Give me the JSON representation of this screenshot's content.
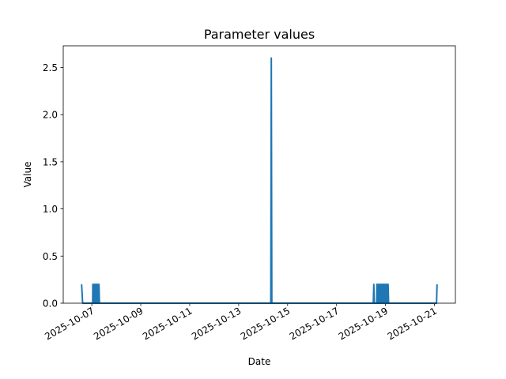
{
  "chart_data": {
    "type": "line",
    "title": "Parameter values",
    "x_label": "Date",
    "y_label": "Value",
    "x": [
      "2025-10-06T14:00",
      "2025-10-06T15:00",
      "2025-10-07T00:50",
      "2025-10-07T01:00",
      "2025-10-07T01:30",
      "2025-10-07T02:00",
      "2025-10-07T02:30",
      "2025-10-07T03:00",
      "2025-10-07T03:30",
      "2025-10-07T04:00",
      "2025-10-07T04:30",
      "2025-10-07T05:00",
      "2025-10-07T05:30",
      "2025-10-07T06:00",
      "2025-10-07T06:30",
      "2025-10-07T07:00",
      "2025-10-07T07:30",
      "2025-10-14T07:30",
      "2025-10-14T08:00",
      "2025-10-14T08:30",
      "2025-10-18T12:00",
      "2025-10-18T12:30",
      "2025-10-18T13:00",
      "2025-10-18T15:20",
      "2025-10-18T15:30",
      "2025-10-18T16:00",
      "2025-10-18T16:30",
      "2025-10-18T17:00",
      "2025-10-18T17:30",
      "2025-10-18T18:00",
      "2025-10-18T18:30",
      "2025-10-18T19:00",
      "2025-10-18T19:30",
      "2025-10-18T20:00",
      "2025-10-18T20:30",
      "2025-10-18T21:00",
      "2025-10-18T21:30",
      "2025-10-18T22:00",
      "2025-10-18T22:30",
      "2025-10-18T23:00",
      "2025-10-18T23:30",
      "2025-10-19T00:00",
      "2025-10-19T00:30",
      "2025-10-19T01:00",
      "2025-10-19T01:30",
      "2025-10-19T02:00",
      "2025-10-19T02:30",
      "2025-10-19T03:00",
      "2025-10-21T02:00",
      "2025-10-21T02:30"
    ],
    "values": [
      0.2,
      0,
      0,
      0.2,
      0,
      0.2,
      0,
      0.2,
      0,
      0.2,
      0,
      0.2,
      0,
      0.2,
      0,
      0.2,
      0,
      0,
      2.6,
      0,
      0,
      0.2,
      0,
      0,
      0.2,
      0,
      0.2,
      0,
      0.2,
      0,
      0.2,
      0,
      0.2,
      0,
      0.2,
      0,
      0.2,
      0,
      0.2,
      0,
      0.2,
      0,
      0.2,
      0,
      0.2,
      0,
      0.2,
      0,
      0,
      0.2
    ],
    "color": "#1f77b4",
    "xlim": [
      "2025-10-05T20:00",
      "2025-10-21T20:30"
    ],
    "xticks": [
      "2025-10-07",
      "2025-10-09",
      "2025-10-11",
      "2025-10-13",
      "2025-10-15",
      "2025-10-17",
      "2025-10-19",
      "2025-10-21"
    ],
    "ylim": [
      0,
      2.73
    ],
    "yticks": [
      {
        "value": 0,
        "label": "0.0"
      },
      {
        "value": 0.5,
        "label": "0.5"
      },
      {
        "value": 1,
        "label": "1.0"
      },
      {
        "value": 1.5,
        "label": "1.5"
      },
      {
        "value": 2,
        "label": "2.0"
      },
      {
        "value": 2.5,
        "label": "2.5"
      }
    ],
    "grid": false
  }
}
